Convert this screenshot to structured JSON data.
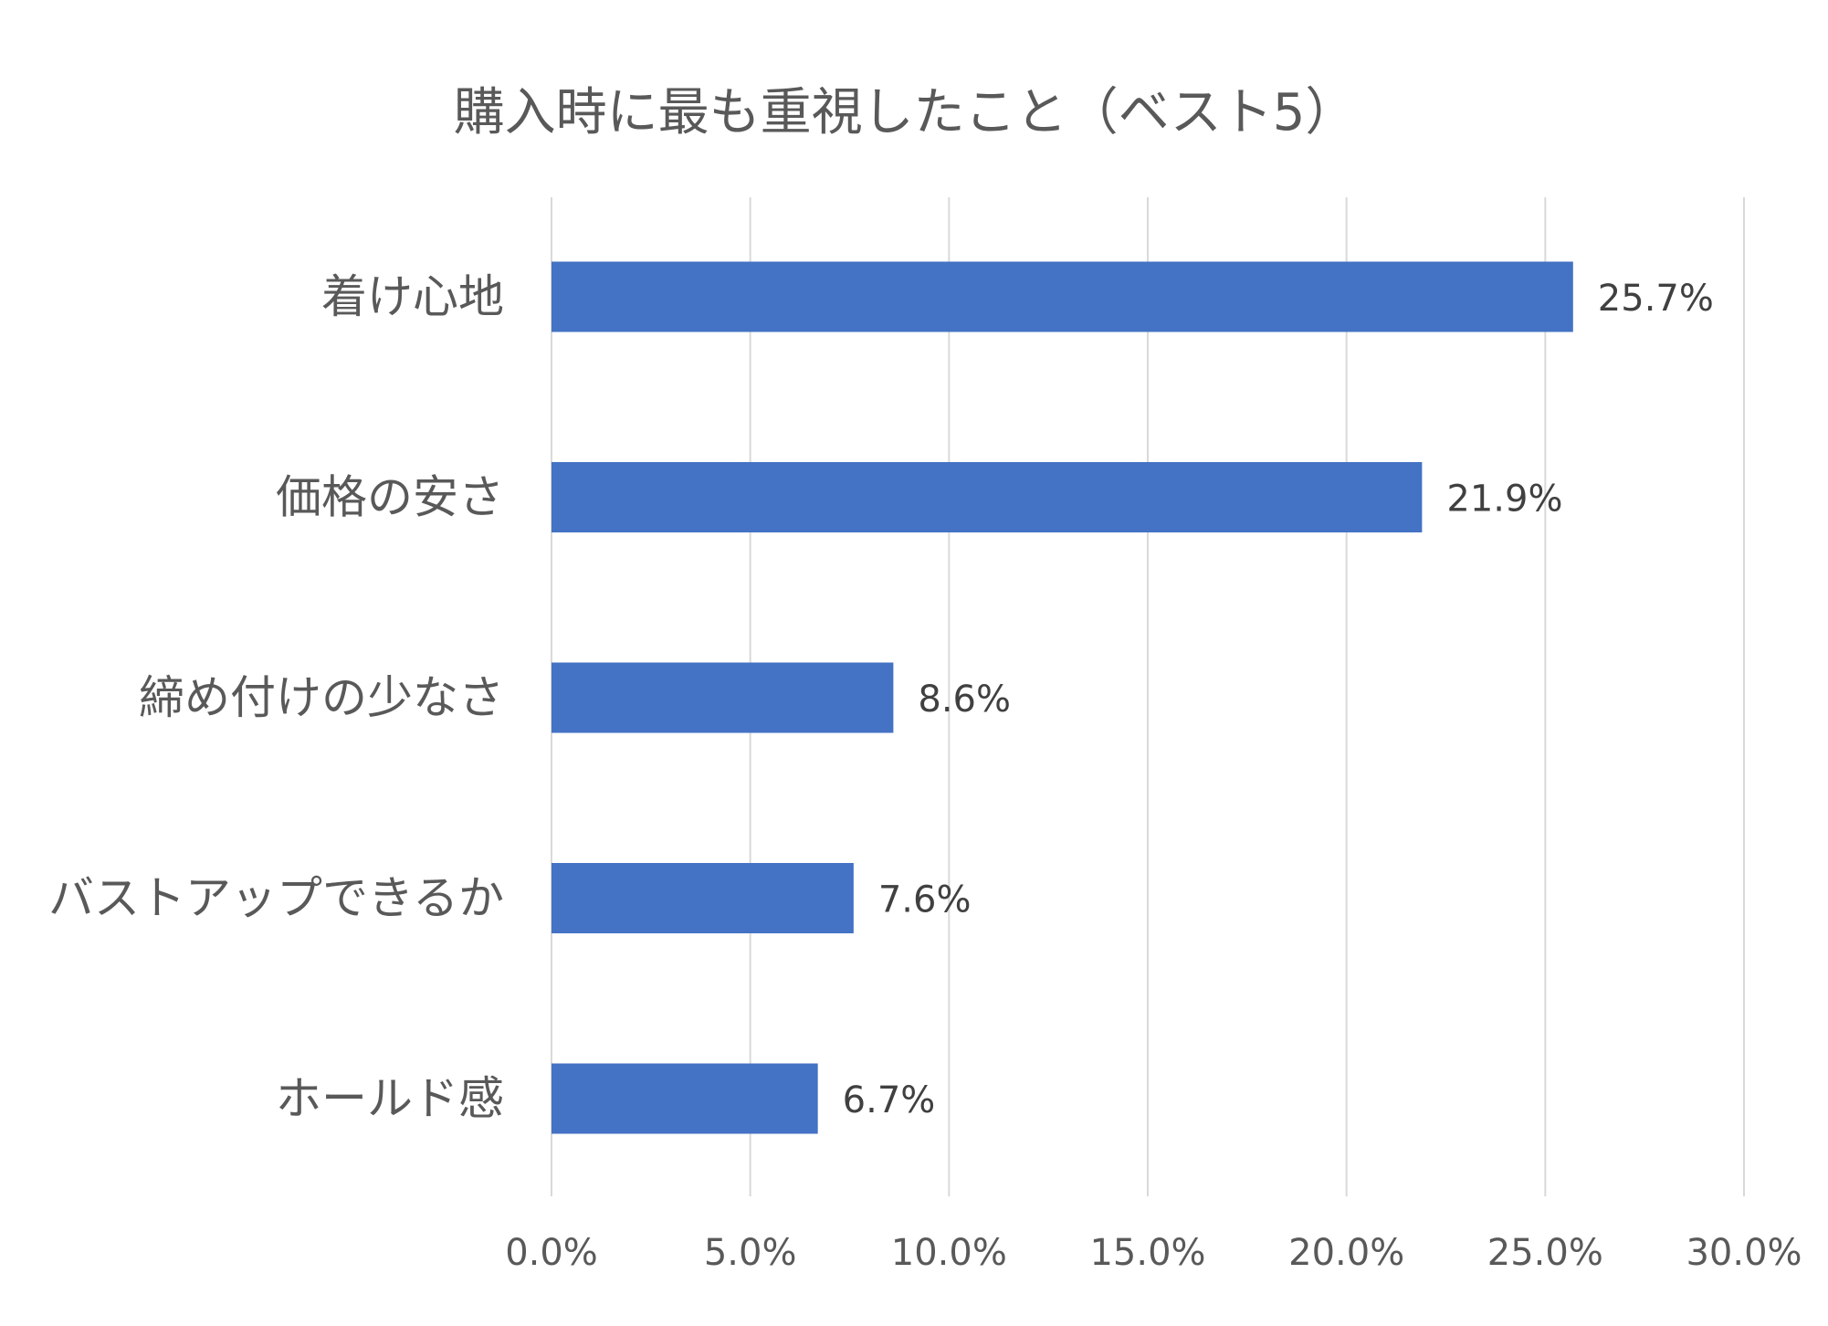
{
  "chart_data": {
    "type": "bar",
    "orientation": "horizontal",
    "title": "購入時に最も重視したこと（ベスト5）",
    "categories": [
      "着け心地",
      "価格の安さ",
      "締め付けの少なさ",
      "バストアップできるか",
      "ホールド感"
    ],
    "values": [
      25.7,
      21.9,
      8.6,
      7.6,
      6.7
    ],
    "value_labels": [
      "25.7%",
      "21.9%",
      "8.6%",
      "7.6%",
      "6.7%"
    ],
    "xlim": [
      0,
      30
    ],
    "x_ticks": [
      0,
      5,
      10,
      15,
      20,
      25,
      30
    ],
    "x_tick_labels": [
      "0.0%",
      "5.0%",
      "10.0%",
      "15.0%",
      "20.0%",
      "25.0%",
      "30.0%"
    ],
    "xlabel": "",
    "ylabel": "",
    "grid": "vertical",
    "legend": "none",
    "colors": {
      "bar": "#4472C4",
      "grid": "#D9D9D9",
      "text": "#595959",
      "data_label": "#404040"
    }
  }
}
